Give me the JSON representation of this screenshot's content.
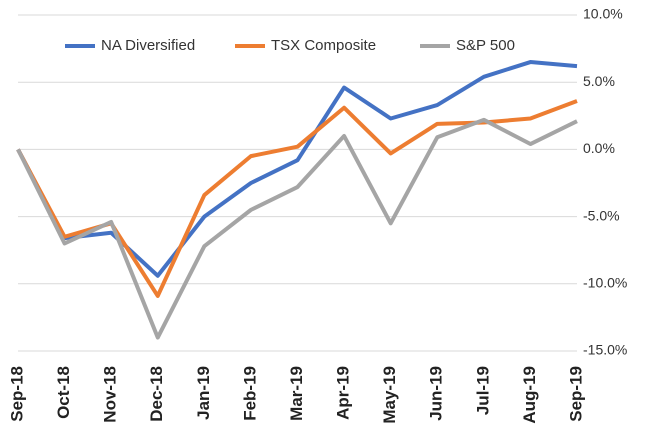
{
  "chart_data": {
    "type": "line",
    "categories": [
      "Sep-18",
      "Oct-18",
      "Nov-18",
      "Dec-18",
      "Jan-19",
      "Feb-19",
      "Mar-19",
      "Apr-19",
      "May-19",
      "Jun-19",
      "Jul-19",
      "Aug-19",
      "Sep-19"
    ],
    "series": [
      {
        "name": "NA Diversified",
        "color": "#4472c4",
        "values": [
          0,
          -6.6,
          -6.2,
          -9.4,
          -5.0,
          -2.5,
          -0.8,
          4.6,
          2.3,
          3.3,
          5.4,
          6.5,
          6.2
        ]
      },
      {
        "name": "TSX Composite",
        "color": "#ed7d31",
        "values": [
          0,
          -6.5,
          -5.5,
          -10.9,
          -3.4,
          -0.5,
          0.2,
          3.1,
          -0.3,
          1.9,
          2.0,
          2.3,
          3.6
        ]
      },
      {
        "name": "S&P 500",
        "color": "#a5a5a5",
        "values": [
          0,
          -7.0,
          -5.4,
          -14.0,
          -7.2,
          -4.5,
          -2.8,
          1.0,
          -5.5,
          0.9,
          2.2,
          0.4,
          2.1
        ]
      }
    ],
    "ylim": [
      -15,
      10
    ],
    "yticks": [
      {
        "value": -15,
        "label": "-15.0%"
      },
      {
        "value": -10,
        "label": "-10.0%"
      },
      {
        "value": -5,
        "label": "-5.0%"
      },
      {
        "value": 0,
        "label": "0.0%"
      },
      {
        "value": 5,
        "label": "5.0%"
      },
      {
        "value": 10,
        "label": "10.0%"
      }
    ],
    "grid": true,
    "legend": "top"
  }
}
